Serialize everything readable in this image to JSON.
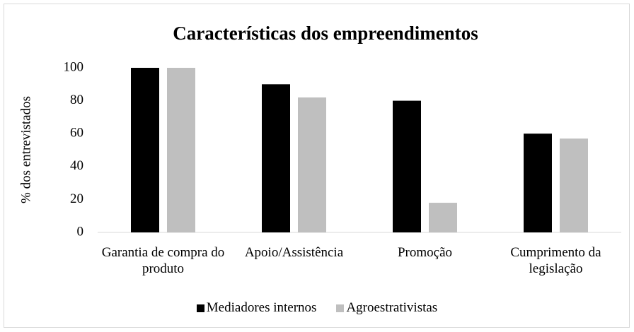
{
  "chart_data": {
    "type": "bar",
    "title": "Características dos empreendimentos",
    "y_label": "% dos entrevistados",
    "categories": [
      "Garantia de compra do produto",
      "Apoio/Assistência",
      "Promoção",
      "Cumprimento da legislação"
    ],
    "series": [
      {
        "name": "Mediadores internos",
        "color": "#000000",
        "values": [
          100,
          90,
          80,
          60
        ]
      },
      {
        "name": "Agroestrativistas",
        "color": "#bfbfbf",
        "values": [
          100,
          82,
          18,
          57
        ]
      }
    ],
    "ylim": [
      0,
      100
    ],
    "yticks": [
      0,
      20,
      40,
      60,
      80,
      100
    ],
    "grid": false,
    "legend": "bottom"
  }
}
